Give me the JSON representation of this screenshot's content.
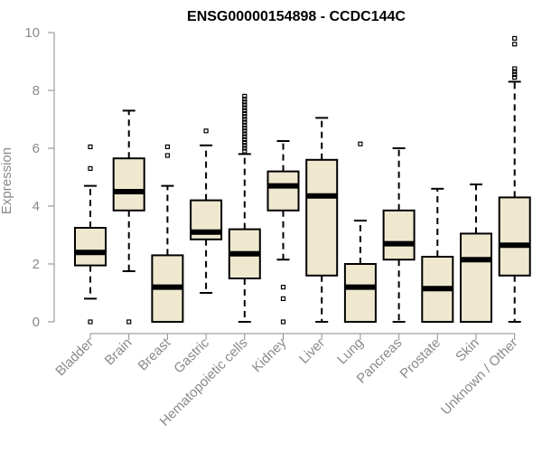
{
  "chart_data": {
    "type": "box",
    "title": "ENSG00000154898 - CCDC144C",
    "xlabel": "",
    "ylabel": "Expression",
    "ylim": [
      0,
      10
    ],
    "yticks": [
      0,
      2,
      4,
      6,
      8,
      10
    ],
    "categories": [
      "Bladder",
      "Brain",
      "Breast",
      "Gastric",
      "Hematopoietic cells",
      "Kidney",
      "Liver",
      "Lung",
      "Pancreas",
      "Prostate",
      "Skin",
      "Unknown / Other"
    ],
    "boxes": [
      {
        "category": "Bladder",
        "whisker_low": 0.8,
        "q1": 1.95,
        "median": 2.4,
        "q3": 3.25,
        "whisker_high": 4.7,
        "outliers": [
          0.0,
          5.3,
          6.05
        ]
      },
      {
        "category": "Brain",
        "whisker_low": 1.75,
        "q1": 3.85,
        "median": 4.5,
        "q3": 5.65,
        "whisker_high": 7.3,
        "outliers": [
          0.0
        ]
      },
      {
        "category": "Breast",
        "whisker_low": 0.0,
        "q1": 0.0,
        "median": 1.2,
        "q3": 2.3,
        "whisker_high": 4.7,
        "outliers": [
          5.75,
          6.05
        ]
      },
      {
        "category": "Gastric",
        "whisker_low": 1.0,
        "q1": 2.85,
        "median": 3.1,
        "q3": 4.2,
        "whisker_high": 6.1,
        "outliers": [
          6.6
        ]
      },
      {
        "category": "Hematopoietic cells",
        "whisker_low": 0.0,
        "q1": 1.5,
        "median": 2.35,
        "q3": 3.2,
        "whisker_high": 5.8,
        "outliers": [
          5.9,
          6.0,
          6.1,
          6.2,
          6.3,
          6.4,
          6.5,
          6.6,
          6.7,
          6.8,
          6.9,
          7.0,
          7.1,
          7.2,
          7.3,
          7.4,
          7.5,
          7.6,
          7.7,
          7.8
        ]
      },
      {
        "category": "Kidney",
        "whisker_low": 2.15,
        "q1": 3.85,
        "median": 4.7,
        "q3": 5.2,
        "whisker_high": 6.25,
        "outliers": [
          0.0,
          0.8,
          1.2
        ]
      },
      {
        "category": "Liver",
        "whisker_low": 0.0,
        "q1": 1.6,
        "median": 4.35,
        "q3": 5.6,
        "whisker_high": 7.05,
        "outliers": []
      },
      {
        "category": "Lung",
        "whisker_low": 0.0,
        "q1": 0.0,
        "median": 1.2,
        "q3": 2.0,
        "whisker_high": 3.5,
        "outliers": [
          6.15
        ]
      },
      {
        "category": "Pancreas",
        "whisker_low": 0.0,
        "q1": 2.15,
        "median": 2.7,
        "q3": 3.85,
        "whisker_high": 6.0,
        "outliers": []
      },
      {
        "category": "Prostate",
        "whisker_low": 0.0,
        "q1": 0.0,
        "median": 1.15,
        "q3": 2.25,
        "whisker_high": 4.6,
        "outliers": []
      },
      {
        "category": "Skin",
        "whisker_low": 0.0,
        "q1": 0.0,
        "median": 2.15,
        "q3": 3.05,
        "whisker_high": 4.75,
        "outliers": []
      },
      {
        "category": "Unknown / Other",
        "whisker_low": 0.0,
        "q1": 1.6,
        "median": 2.65,
        "q3": 4.3,
        "whisker_high": 8.3,
        "outliers": [
          8.45,
          8.55,
          8.65,
          8.75,
          9.6,
          9.8
        ]
      }
    ],
    "box_fill": "#efe8cf",
    "box_stroke": "#000000",
    "axis_color": "#8a8a8a",
    "grid": false,
    "legend": "none"
  }
}
